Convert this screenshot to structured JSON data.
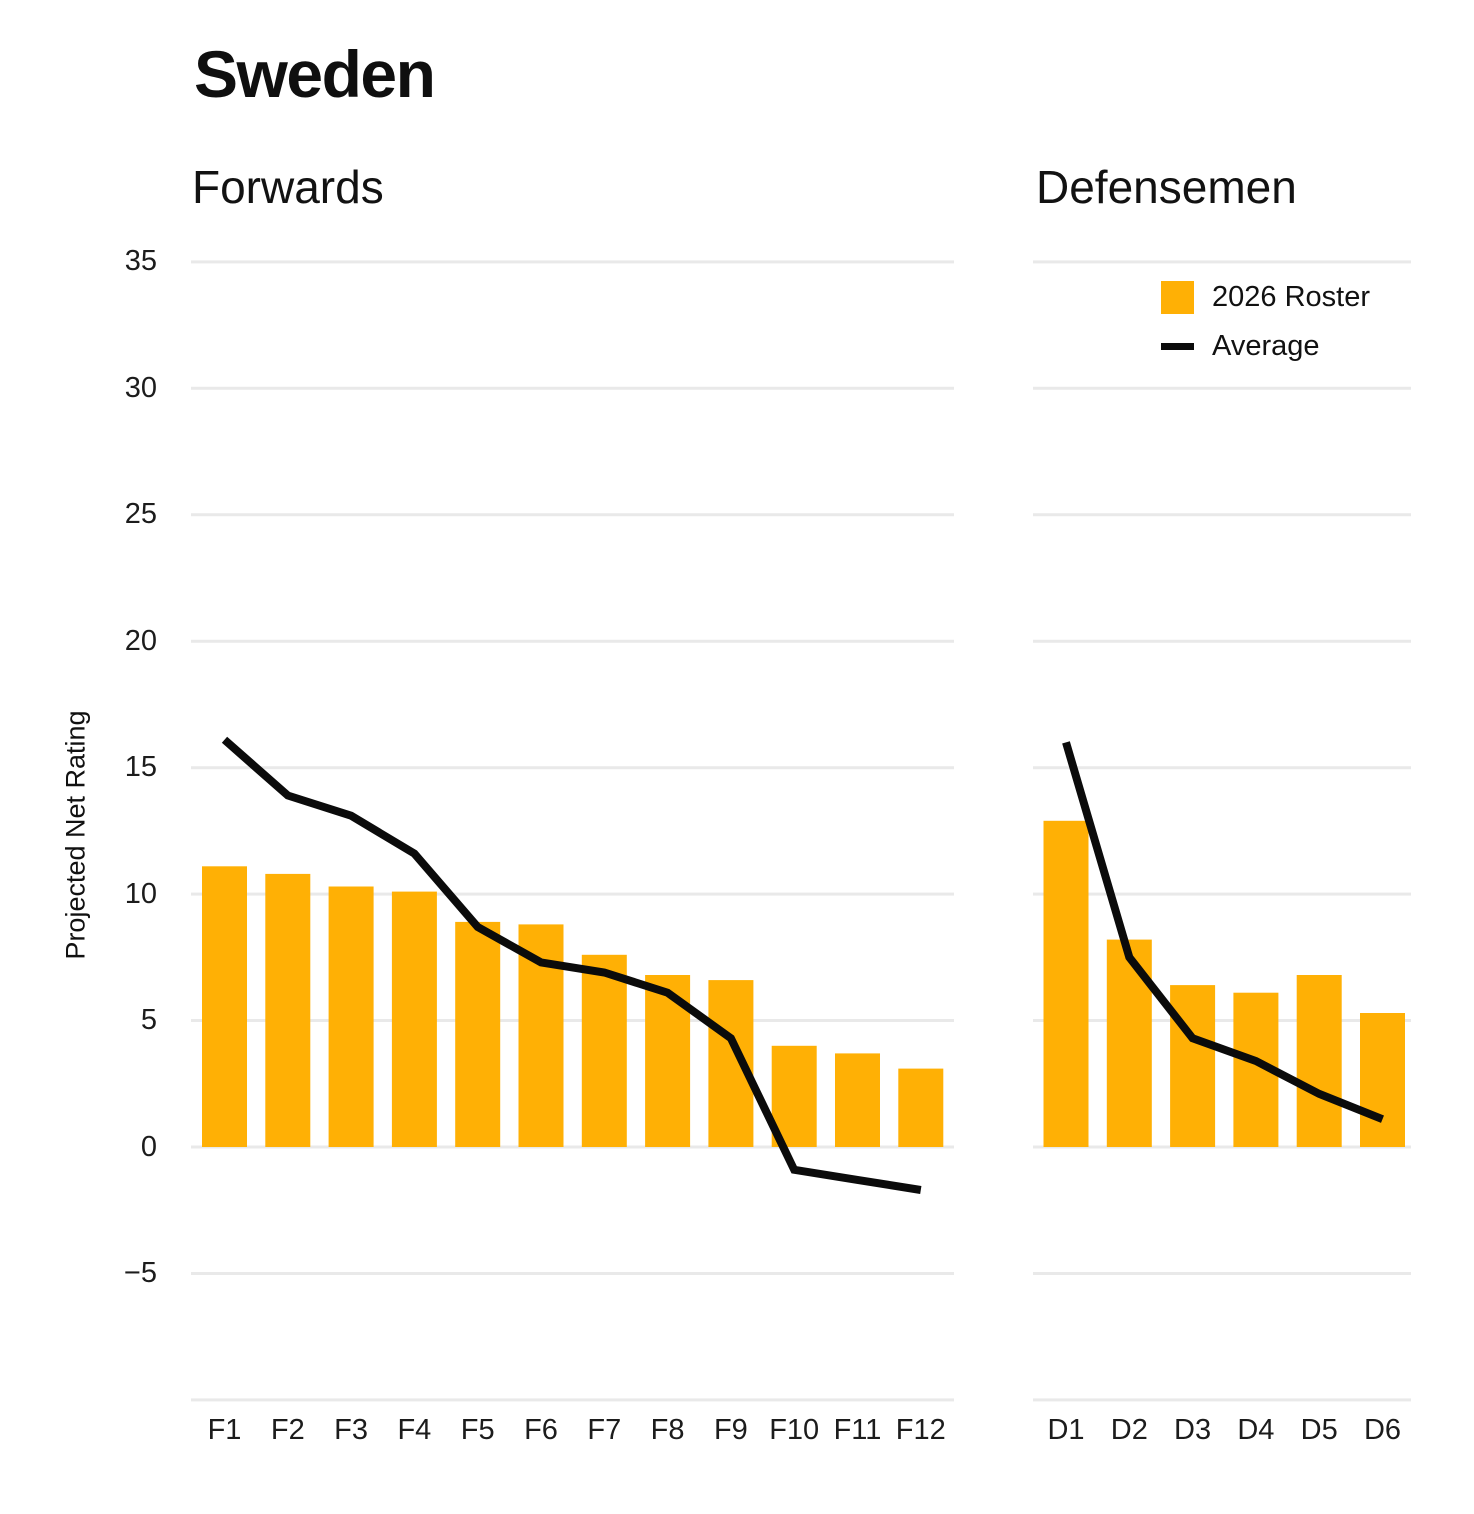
{
  "title": "Sweden",
  "y_axis": {
    "label": "Projected Net Rating",
    "ticks": [
      35,
      30,
      25,
      20,
      15,
      10,
      5,
      0,
      -5
    ],
    "range_bottom_gridline": -10
  },
  "legend": {
    "items": [
      {
        "label": "2026 Roster",
        "swatch": "square",
        "color": "#FFB005"
      },
      {
        "label": "Average",
        "swatch": "line",
        "color": "#0B0B0B"
      }
    ]
  },
  "colors": {
    "bar": "#FFB005",
    "line": "#0B0B0B",
    "grid": "#E9E9E9",
    "tick_text": "#1C1C1C"
  },
  "chart_data": [
    {
      "type": "bar",
      "title": "Forwards",
      "categories": [
        "F1",
        "F2",
        "F3",
        "F4",
        "F5",
        "F6",
        "F7",
        "F8",
        "F9",
        "F10",
        "F11",
        "F12"
      ],
      "series": [
        {
          "name": "2026 Roster",
          "render": "bar",
          "values": [
            11.1,
            10.8,
            10.3,
            10.1,
            8.9,
            8.8,
            7.6,
            6.8,
            6.6,
            4.0,
            3.7,
            3.1
          ]
        },
        {
          "name": "Average",
          "render": "line",
          "values": [
            16.1,
            13.9,
            13.1,
            11.6,
            8.7,
            7.3,
            6.9,
            6.1,
            4.3,
            -0.9,
            -1.3,
            -1.7
          ]
        }
      ],
      "xlabel": "",
      "ylabel": "Projected Net Rating",
      "ylim": [
        -10,
        36.4
      ],
      "yticks": [
        35,
        30,
        25,
        20,
        15,
        10,
        5,
        0,
        -5
      ],
      "grid": true,
      "legend_position": "top-right"
    },
    {
      "type": "bar",
      "title": "Defensemen",
      "categories": [
        "D1",
        "D2",
        "D3",
        "D4",
        "D5",
        "D6"
      ],
      "series": [
        {
          "name": "2026 Roster",
          "render": "bar",
          "values": [
            12.9,
            8.2,
            6.4,
            6.1,
            6.8,
            5.3
          ]
        },
        {
          "name": "Average",
          "render": "line",
          "values": [
            16.0,
            7.5,
            4.3,
            3.4,
            2.1,
            1.1
          ]
        }
      ],
      "xlabel": "",
      "ylabel": "Projected Net Rating",
      "ylim": [
        -10,
        36.4
      ],
      "yticks": [
        35,
        30,
        25,
        20,
        15,
        10,
        5,
        0,
        -5
      ],
      "grid": true,
      "legend_position": "top-right"
    }
  ]
}
